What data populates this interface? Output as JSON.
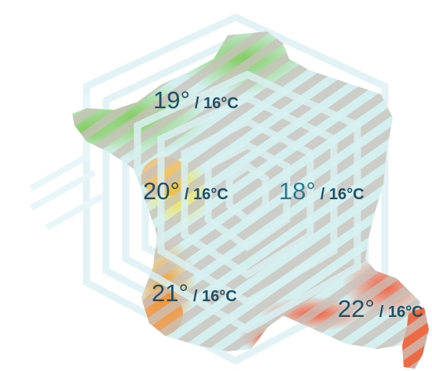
{
  "map": {
    "colors": {
      "background": "#ffffff",
      "hex_outline": "#e2f2f4",
      "map_base": "#d3eeee",
      "stripe": "#cbc3bc",
      "green": "#8fd06a",
      "yellow": "#f2df3a",
      "orange": "#f2a233",
      "red": "#f06a45",
      "label": "#1f4f66",
      "label_center": "#2a7a90"
    },
    "regions": [
      {
        "id": "north-west",
        "temp": "19°",
        "setpoint": "/ 16°C"
      },
      {
        "id": "west",
        "temp": "20°",
        "setpoint": "/ 16°C"
      },
      {
        "id": "center-east",
        "temp": "18°",
        "setpoint": "/ 16°C"
      },
      {
        "id": "south-west",
        "temp": "21°",
        "setpoint": "/ 16°C"
      },
      {
        "id": "south-east",
        "temp": "22°",
        "setpoint": "/ 16°C"
      }
    ]
  }
}
